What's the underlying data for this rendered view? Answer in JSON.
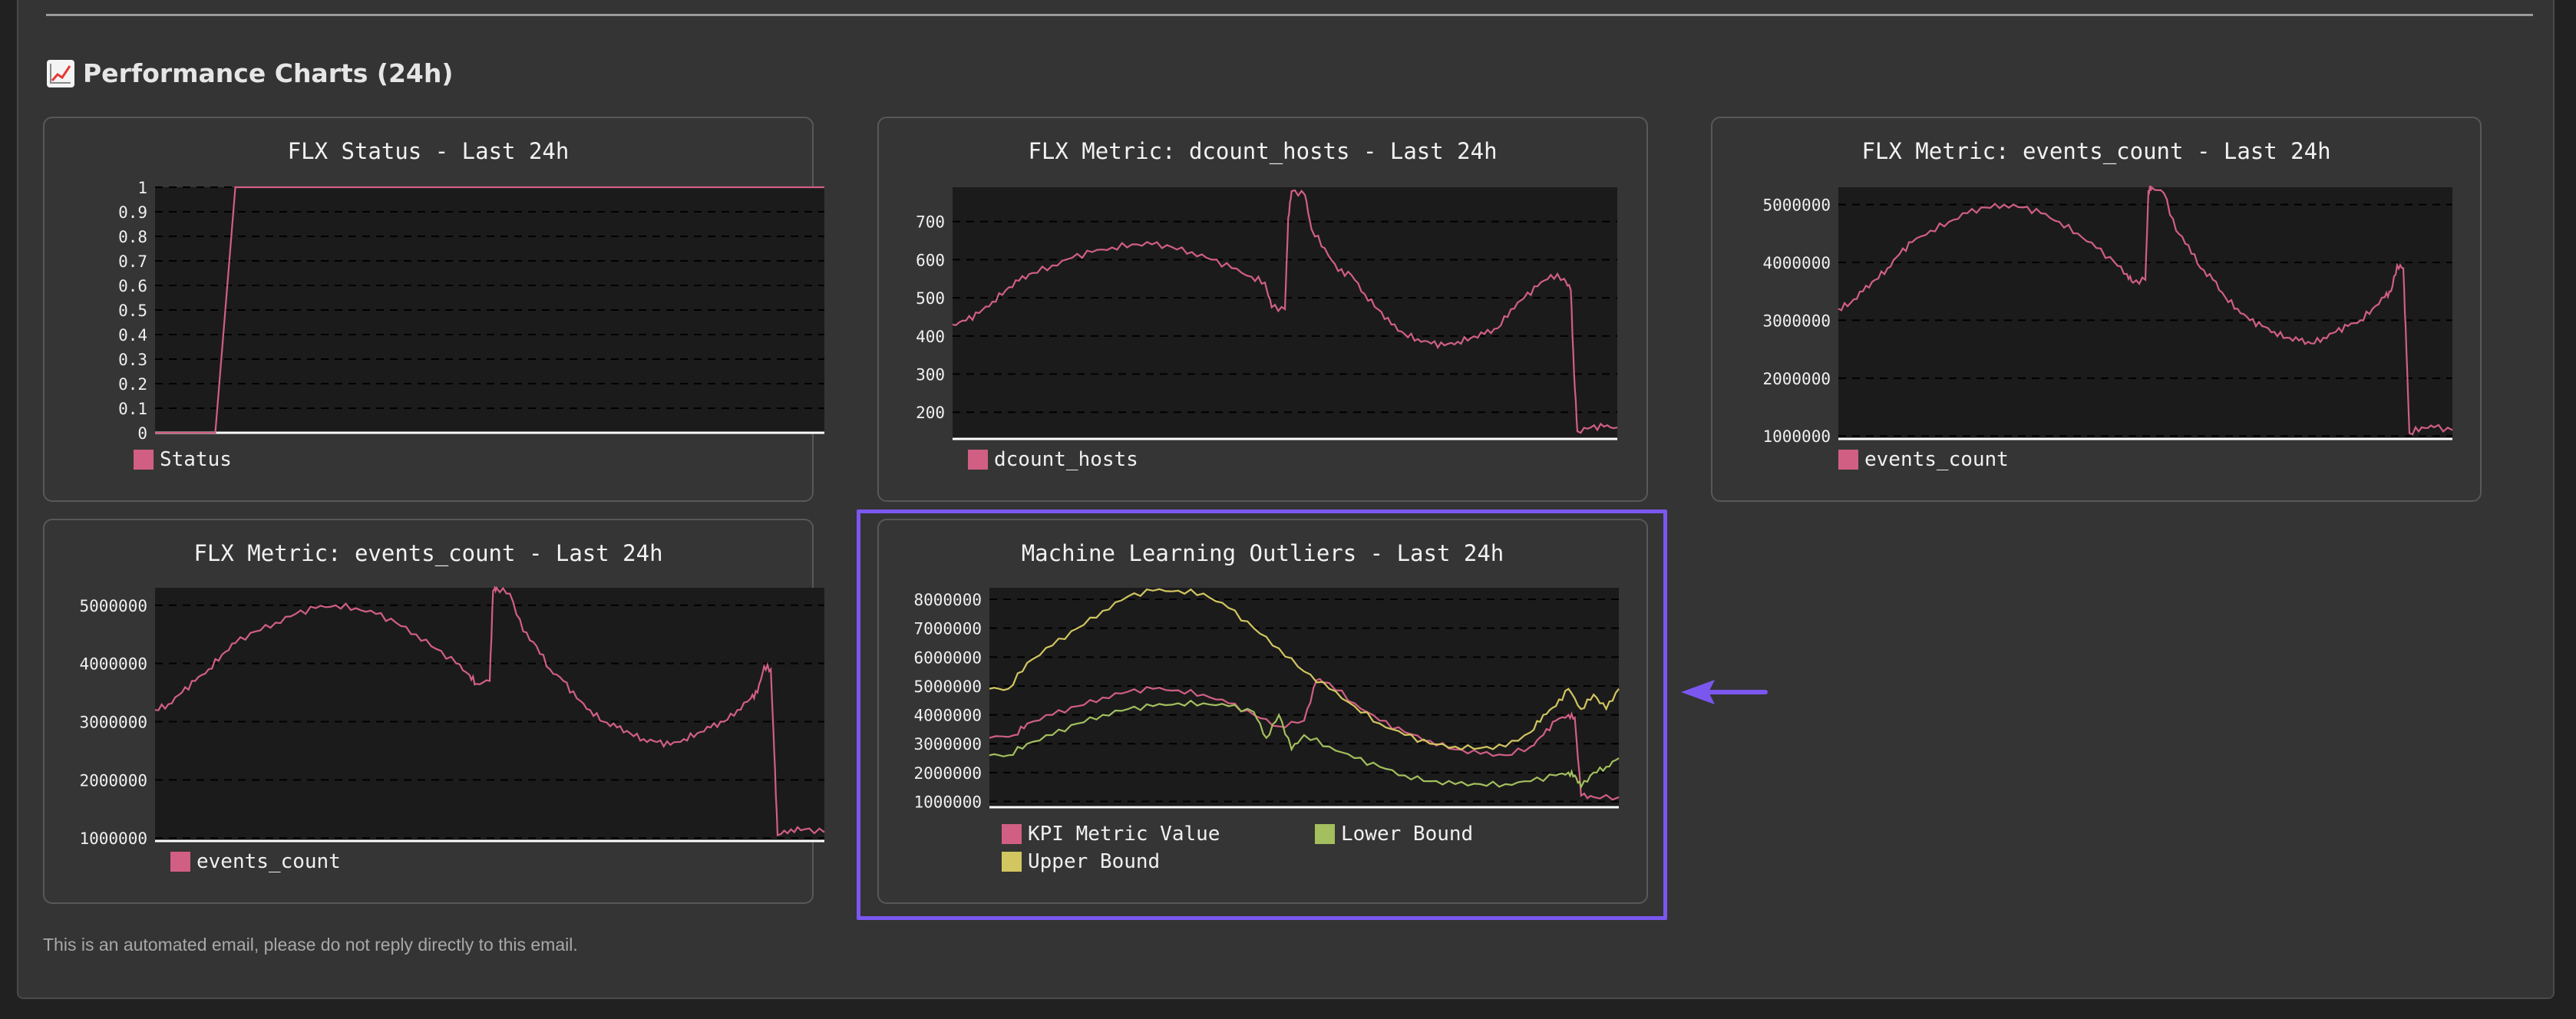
{
  "section": {
    "title": "Performance Charts (24h)",
    "icon": "chart-increasing-icon"
  },
  "footer": {
    "text": "This is an automated email, please do not reply directly to this email."
  },
  "colors": {
    "kpi": "#d15f83",
    "lower": "#a3bf5e",
    "upper": "#d2c660",
    "plot_bg": "#1b1b1b",
    "highlight": "#7b57f0"
  },
  "chart_data": [
    {
      "type": "line",
      "title": "FLX Status - Last 24h",
      "ylim": [
        0,
        1
      ],
      "yticks": [
        "0",
        "0.1",
        "0.2",
        "0.3",
        "0.4",
        "0.5",
        "0.6",
        "0.7",
        "0.8",
        "0.9",
        "1"
      ],
      "grid": true,
      "legend_position": "bottom-left",
      "series": [
        {
          "name": "Status",
          "x": [
            0,
            0.09,
            0.12,
            1
          ],
          "values": [
            0,
            0,
            1,
            1
          ]
        }
      ]
    },
    {
      "type": "line",
      "title": "FLX Metric: dcount_hosts - Last 24h",
      "ylim": [
        130,
        790
      ],
      "yticks": [
        "200",
        "300",
        "400",
        "500",
        "600",
        "700"
      ],
      "grid": true,
      "legend_position": "bottom-left",
      "series": [
        {
          "name": "dcount_hosts",
          "x": [
            0,
            0.02,
            0.04,
            0.06,
            0.08,
            0.1,
            0.12,
            0.15,
            0.18,
            0.21,
            0.24,
            0.27,
            0.3,
            0.33,
            0.36,
            0.39,
            0.42,
            0.45,
            0.47,
            0.48,
            0.5,
            0.505,
            0.51,
            0.53,
            0.54,
            0.56,
            0.58,
            0.6,
            0.62,
            0.64,
            0.66,
            0.68,
            0.7,
            0.72,
            0.74,
            0.76,
            0.78,
            0.8,
            0.82,
            0.84,
            0.86,
            0.88,
            0.9,
            0.92,
            0.93,
            0.935,
            0.94,
            0.96,
            0.98,
            1
          ],
          "values": [
            430,
            440,
            460,
            490,
            520,
            545,
            565,
            585,
            605,
            620,
            632,
            640,
            640,
            633,
            620,
            600,
            578,
            555,
            540,
            475,
            470,
            710,
            780,
            770,
            680,
            630,
            570,
            560,
            510,
            470,
            430,
            405,
            392,
            380,
            375,
            385,
            395,
            405,
            420,
            470,
            500,
            530,
            560,
            550,
            520,
            300,
            150,
            160,
            162,
            160
          ]
        }
      ]
    },
    {
      "type": "line",
      "title": "FLX Metric: events_count - Last 24h",
      "ylim": [
        950000,
        5300000
      ],
      "yticks": [
        "1000000",
        "2000000",
        "3000000",
        "4000000",
        "5000000"
      ],
      "grid": true,
      "legend_position": "bottom-left",
      "series": [
        {
          "name": "events_count",
          "x": [
            0,
            0.02,
            0.04,
            0.06,
            0.08,
            0.1,
            0.12,
            0.15,
            0.18,
            0.21,
            0.24,
            0.27,
            0.3,
            0.33,
            0.36,
            0.39,
            0.42,
            0.45,
            0.47,
            0.48,
            0.5,
            0.505,
            0.51,
            0.53,
            0.55,
            0.57,
            0.59,
            0.61,
            0.63,
            0.65,
            0.67,
            0.69,
            0.71,
            0.73,
            0.75,
            0.77,
            0.79,
            0.81,
            0.83,
            0.85,
            0.87,
            0.89,
            0.9,
            0.91,
            0.92,
            0.925,
            0.93,
            0.95,
            0.97,
            1
          ],
          "values": [
            3200000,
            3300000,
            3500000,
            3700000,
            3900000,
            4150000,
            4350000,
            4550000,
            4700000,
            4850000,
            4950000,
            5000000,
            4950000,
            4850000,
            4700000,
            4500000,
            4250000,
            4000000,
            3800000,
            3650000,
            3700000,
            5250000,
            5300000,
            5200000,
            4550000,
            4300000,
            3900000,
            3700000,
            3400000,
            3200000,
            3000000,
            2900000,
            2800000,
            2700000,
            2650000,
            2600000,
            2700000,
            2800000,
            2900000,
            3000000,
            3200000,
            3400000,
            3500000,
            3950000,
            3900000,
            2500000,
            1050000,
            1150000,
            1150000,
            1100000
          ]
        }
      ]
    },
    {
      "type": "line",
      "title": "FLX Metric: events_count - Last 24h",
      "ylim": [
        950000,
        5300000
      ],
      "yticks": [
        "1000000",
        "2000000",
        "3000000",
        "4000000",
        "5000000"
      ],
      "grid": true,
      "legend_position": "bottom-left",
      "series": [
        {
          "name": "events_count",
          "x": [
            0,
            0.02,
            0.04,
            0.06,
            0.08,
            0.1,
            0.12,
            0.15,
            0.18,
            0.21,
            0.24,
            0.27,
            0.3,
            0.33,
            0.36,
            0.39,
            0.42,
            0.45,
            0.47,
            0.48,
            0.5,
            0.505,
            0.51,
            0.53,
            0.55,
            0.57,
            0.59,
            0.61,
            0.63,
            0.65,
            0.67,
            0.69,
            0.71,
            0.73,
            0.75,
            0.77,
            0.79,
            0.81,
            0.83,
            0.85,
            0.87,
            0.89,
            0.9,
            0.91,
            0.92,
            0.925,
            0.93,
            0.95,
            0.97,
            1
          ],
          "values": [
            3200000,
            3300000,
            3500000,
            3700000,
            3900000,
            4150000,
            4350000,
            4550000,
            4700000,
            4850000,
            4950000,
            5000000,
            4950000,
            4850000,
            4700000,
            4500000,
            4250000,
            4000000,
            3800000,
            3650000,
            3700000,
            5250000,
            5300000,
            5200000,
            4550000,
            4300000,
            3900000,
            3700000,
            3400000,
            3200000,
            3000000,
            2900000,
            2800000,
            2700000,
            2650000,
            2600000,
            2700000,
            2800000,
            2900000,
            3000000,
            3200000,
            3400000,
            3500000,
            3950000,
            3900000,
            2500000,
            1050000,
            1150000,
            1150000,
            1100000
          ]
        }
      ]
    },
    {
      "type": "line",
      "title": "Machine Learning Outliers - Last 24h",
      "ylim": [
        800000,
        8400000
      ],
      "yticks": [
        "1000000",
        "2000000",
        "3000000",
        "4000000",
        "5000000",
        "6000000",
        "7000000",
        "8000000"
      ],
      "grid": true,
      "legend_position": "bottom-left",
      "series": [
        {
          "name": "KPI Metric Value",
          "x": [
            0,
            0.04,
            0.06,
            0.1,
            0.14,
            0.18,
            0.22,
            0.26,
            0.3,
            0.34,
            0.38,
            0.42,
            0.46,
            0.5,
            0.52,
            0.54,
            0.58,
            0.62,
            0.66,
            0.7,
            0.74,
            0.78,
            0.82,
            0.86,
            0.88,
            0.9,
            0.92,
            0.93,
            0.94,
            0.96,
            1
          ],
          "values": [
            3200000,
            3300000,
            3700000,
            4000000,
            4300000,
            4600000,
            4800000,
            4900000,
            4850000,
            4700000,
            4400000,
            4000000,
            3600000,
            3800000,
            5200000,
            5100000,
            4400000,
            3800000,
            3400000,
            3100000,
            2800000,
            2650000,
            2600000,
            2900000,
            3300000,
            3800000,
            4000000,
            3900000,
            1200000,
            1150000,
            1150000
          ]
        },
        {
          "name": "Lower Bound",
          "x": [
            0,
            0.03,
            0.06,
            0.1,
            0.14,
            0.18,
            0.22,
            0.26,
            0.3,
            0.34,
            0.38,
            0.42,
            0.44,
            0.46,
            0.48,
            0.5,
            0.54,
            0.58,
            0.62,
            0.66,
            0.7,
            0.74,
            0.78,
            0.82,
            0.86,
            0.9,
            0.92,
            0.93,
            0.94,
            0.96,
            0.98,
            1
          ],
          "values": [
            2600000,
            2600000,
            3000000,
            3300000,
            3700000,
            4000000,
            4200000,
            4300000,
            4400000,
            4400000,
            4300000,
            4100000,
            3200000,
            4000000,
            2800000,
            3300000,
            2900000,
            2500000,
            2200000,
            1900000,
            1700000,
            1600000,
            1600000,
            1600000,
            1700000,
            1900000,
            2000000,
            1900000,
            1500000,
            2000000,
            2200000,
            2500000
          ]
        },
        {
          "name": "Upper Bound",
          "x": [
            0,
            0.03,
            0.06,
            0.1,
            0.14,
            0.18,
            0.22,
            0.26,
            0.3,
            0.34,
            0.38,
            0.42,
            0.46,
            0.5,
            0.54,
            0.58,
            0.62,
            0.66,
            0.7,
            0.74,
            0.78,
            0.82,
            0.86,
            0.88,
            0.9,
            0.92,
            0.94,
            0.96,
            0.98,
            1
          ],
          "values": [
            4900000,
            4900000,
            5800000,
            6400000,
            7000000,
            7600000,
            8100000,
            8300000,
            8300000,
            8200000,
            7700000,
            7000000,
            6300000,
            5500000,
            4900000,
            4300000,
            3700000,
            3300000,
            3000000,
            2900000,
            2850000,
            2900000,
            3400000,
            4000000,
            4300000,
            4900000,
            4200000,
            4700000,
            4200000,
            4900000
          ]
        }
      ]
    }
  ]
}
